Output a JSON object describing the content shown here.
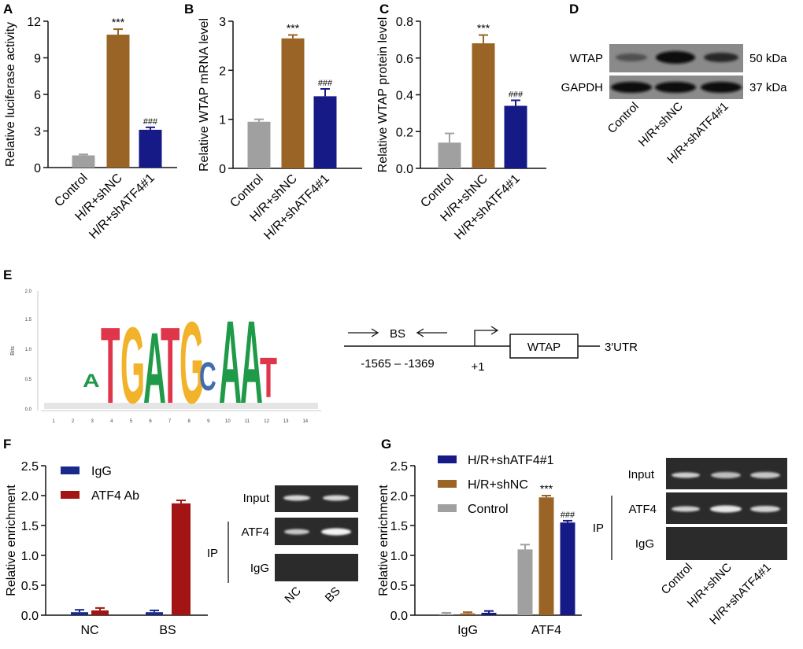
{
  "colors": {
    "control": "#a0a0a0",
    "shnc": "#9a6426",
    "shatf4": "#161a86",
    "igg": "#1a2a8c",
    "atf4ab": "#a31515",
    "axis": "#111111",
    "logo_red": "#e0364b",
    "logo_yellow": "#f2b22a",
    "logo_green": "#1e9a48",
    "logo_blue": "#3f6db0"
  },
  "panel_labels": [
    "A",
    "B",
    "C",
    "D",
    "E",
    "F",
    "G"
  ],
  "chart_data": [
    {
      "panel": "A",
      "type": "bar",
      "ylabel": "Relative luciferase activity",
      "categories": [
        "Control",
        "H/R+shNC",
        "H/R+shATF4#1"
      ],
      "values": [
        1.0,
        10.9,
        3.1
      ],
      "errors": [
        0.08,
        0.45,
        0.2
      ],
      "annotations": [
        "",
        "***",
        "###"
      ],
      "ylim": [
        0,
        12
      ],
      "yticks": [
        0,
        3,
        6,
        9,
        12
      ]
    },
    {
      "panel": "B",
      "type": "bar",
      "ylabel": "Relative WTAP mRNA level",
      "categories": [
        "Control",
        "H/R+shNC",
        "H/R+shATF4#1"
      ],
      "values": [
        0.95,
        2.65,
        1.47
      ],
      "errors": [
        0.05,
        0.07,
        0.15
      ],
      "annotations": [
        "",
        "***",
        "###"
      ],
      "ylim": [
        0,
        3
      ],
      "yticks": [
        0,
        1,
        2,
        3
      ]
    },
    {
      "panel": "C",
      "type": "bar",
      "ylabel": "Relative WTAP protein level",
      "categories": [
        "Control",
        "H/R+shNC",
        "H/R+shATF4#1"
      ],
      "values": [
        0.14,
        0.68,
        0.34
      ],
      "errors": [
        0.05,
        0.045,
        0.03
      ],
      "annotations": [
        "",
        "***",
        "###"
      ],
      "ylim": [
        0,
        0.8
      ],
      "yticks": [
        "0.0",
        "0.2",
        "0.4",
        "0.6",
        "0.8"
      ]
    },
    {
      "panel": "F",
      "type": "bar",
      "ylabel": "Relative enrichment",
      "categories": [
        "NC",
        "BS"
      ],
      "series": [
        {
          "name": "IgG",
          "values": [
            0.05,
            0.05
          ],
          "errors": [
            0.04,
            0.03
          ]
        },
        {
          "name": "ATF4 Ab",
          "values": [
            0.08,
            1.87
          ],
          "errors": [
            0.04,
            0.05
          ]
        }
      ],
      "ylim": [
        0,
        2.5
      ],
      "yticks": [
        "0.0",
        "0.5",
        "1.0",
        "1.5",
        "2.0",
        "2.5"
      ],
      "legend": "top-left"
    },
    {
      "panel": "G",
      "type": "bar",
      "ylabel": "Relative enrichment",
      "categories": [
        "IgG",
        "ATF4"
      ],
      "series": [
        {
          "name": "Control",
          "values": [
            0.02,
            1.1
          ],
          "errors": [
            0.02,
            0.08
          ]
        },
        {
          "name": "H/R+shNC",
          "values": [
            0.03,
            1.97
          ],
          "errors": [
            0.02,
            0.03
          ]
        },
        {
          "name": "H/R+shATF4#1",
          "values": [
            0.04,
            1.55
          ],
          "errors": [
            0.03,
            0.03
          ]
        }
      ],
      "annotations": {
        "ATF4": [
          "",
          "***",
          "###"
        ]
      },
      "legend_order": [
        "H/R+shATF4#1",
        "H/R+shNC",
        "Control"
      ],
      "ylim": [
        0,
        2.5
      ],
      "yticks": [
        "0.0",
        "0.5",
        "1.0",
        "1.5",
        "2.0",
        "2.5"
      ],
      "legend": "top-left"
    }
  ],
  "panel_D": {
    "rows": [
      "WTAP",
      "GAPDH"
    ],
    "sizes": [
      "50 kDa",
      "37 kDa"
    ],
    "lanes": [
      "Control",
      "H/R+shNC",
      "H/R+shATF4#1"
    ]
  },
  "panel_E": {
    "ylabel": "Bits",
    "yticks": [
      "0.0",
      "0.5",
      "1.0",
      "1.5",
      "2.0"
    ],
    "positions": [
      "1",
      "2",
      "3",
      "4",
      "5",
      "6",
      "7",
      "8",
      "9",
      "10",
      "11",
      "12",
      "13",
      "14"
    ],
    "motif": "ATGATGCAAT",
    "diagram": {
      "site": "BS",
      "range": "-1565 – -1369",
      "tss": "+1",
      "gene": "WTAP",
      "utr": "3′UTR"
    }
  },
  "panel_F_gel": {
    "rows": [
      "Input",
      "ATF4",
      "IgG"
    ],
    "ip_label": "IP",
    "lanes": [
      "NC",
      "BS"
    ]
  },
  "panel_G_gel": {
    "rows": [
      "Input",
      "ATF4",
      "IgG"
    ],
    "ip_label": "IP",
    "lanes": [
      "Control",
      "H/R+shNC",
      "H/R+shATF4#1"
    ]
  }
}
